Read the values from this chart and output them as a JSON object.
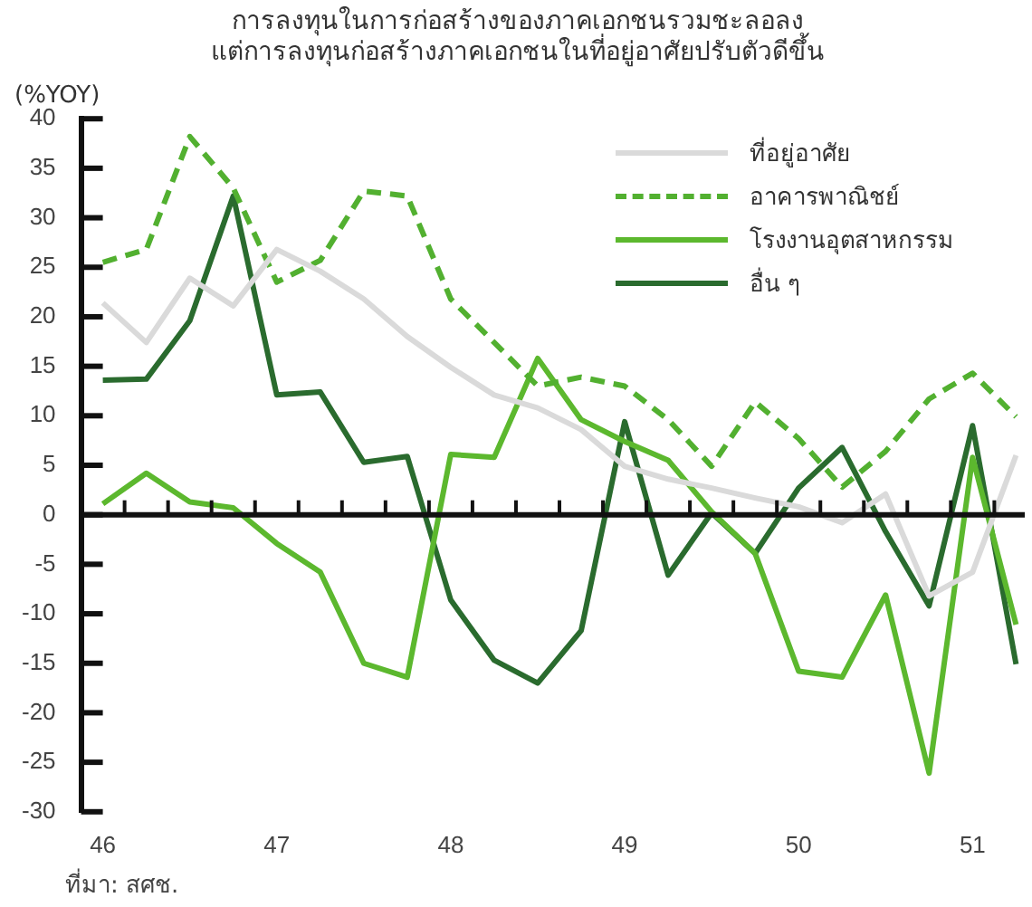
{
  "chart_data": {
    "type": "line",
    "title": "การลงทุนในการก่อสร้างของภาคเอกชนรวมชะลอลง\nแต่การลงทุนก่อสร้างภาคเอกชนในที่อยู่อาศัยปรับตัวดีขึ้น",
    "ylabel": "(%YOY)",
    "annotations": [
      "ที่มา: สศช."
    ],
    "x": [
      46,
      46.25,
      46.5,
      46.75,
      47,
      47.25,
      47.5,
      47.75,
      48,
      48.25,
      48.5,
      48.75,
      49,
      49.25,
      49.5,
      49.75,
      50,
      50.25,
      50.5,
      50.75,
      51,
      51.25
    ],
    "series": [
      {
        "name": "ที่อยู่อาศัย",
        "color": "#dadada",
        "line_style": "solid",
        "values": [
          21.4,
          17.4,
          23.9,
          21.1,
          26.8,
          24.6,
          21.8,
          18,
          14.9,
          12.1,
          10.8,
          8.6,
          4.9,
          3.6,
          2.7,
          1.7,
          0.8,
          -0.8,
          2.1,
          -8.2,
          -5.8,
          6
        ]
      },
      {
        "name": "อาคารพาณิชย์",
        "color": "#52b030",
        "line_style": "dashed",
        "values": [
          25.5,
          26.8,
          38.2,
          33,
          23.5,
          25.7,
          32.7,
          32.2,
          21.8,
          17.4,
          13,
          13.9,
          13,
          9.6,
          4.9,
          11.4,
          7.7,
          2.8,
          6.4,
          11.7,
          14.3,
          9.9
        ]
      },
      {
        "name": "โรงงานอุตสาหกรรม",
        "color": "#5cb82e",
        "line_style": "solid",
        "values": [
          1.1,
          4.2,
          1.3,
          0.7,
          -2.9,
          -5.8,
          -15,
          -16.4,
          6.1,
          5.8,
          15.8,
          9.6,
          7.4,
          5.5,
          0.3,
          -3.9,
          -15.8,
          -16.4,
          -8.1,
          -26.1,
          5.8,
          -11.1
        ]
      },
      {
        "name": "อื่น ๆ",
        "color": "#2a6b2e",
        "line_style": "solid",
        "values": [
          13.6,
          13.7,
          19.6,
          32.2,
          12.1,
          12.4,
          5.3,
          5.9,
          -8.6,
          -14.7,
          -17,
          -11.7,
          9.4,
          -6.1,
          0.2,
          -3.9,
          2.7,
          6.8,
          -1.7,
          -9.2,
          9,
          -15.1
        ]
      }
    ],
    "xlim": [
      45.875,
      51.3
    ],
    "xticks": [
      46,
      {
        "value": 46.125,
        "label": null
      },
      {
        "value": 46.375,
        "label": null
      },
      {
        "value": 46.625,
        "label": null
      },
      {
        "value": 46.875,
        "label": null
      },
      47,
      {
        "value": 47.125,
        "label": null
      },
      {
        "value": 47.375,
        "label": null
      },
      {
        "value": 47.625,
        "label": null
      },
      {
        "value": 47.875,
        "label": null
      },
      48,
      {
        "value": 48.125,
        "label": null
      },
      {
        "value": 48.375,
        "label": null
      },
      {
        "value": 48.625,
        "label": null
      },
      {
        "value": 48.875,
        "label": null
      },
      49,
      {
        "value": 49.125,
        "label": null
      },
      {
        "value": 49.375,
        "label": null
      },
      {
        "value": 49.625,
        "label": null
      },
      {
        "value": 49.875,
        "label": null
      },
      50,
      {
        "value": 50.125,
        "label": null
      },
      {
        "value": 50.375,
        "label": null
      },
      {
        "value": 50.625,
        "label": null
      },
      {
        "value": 50.875,
        "label": null
      },
      51,
      {
        "value": 51.125,
        "label": null
      }
    ],
    "ylim": [
      -30,
      40
    ],
    "yticks": [
      -30,
      -25,
      -20,
      -15,
      -10,
      -5,
      0,
      5,
      10,
      15,
      20,
      25,
      30,
      35,
      40
    ],
    "legend": "top right",
    "marker": "none"
  }
}
